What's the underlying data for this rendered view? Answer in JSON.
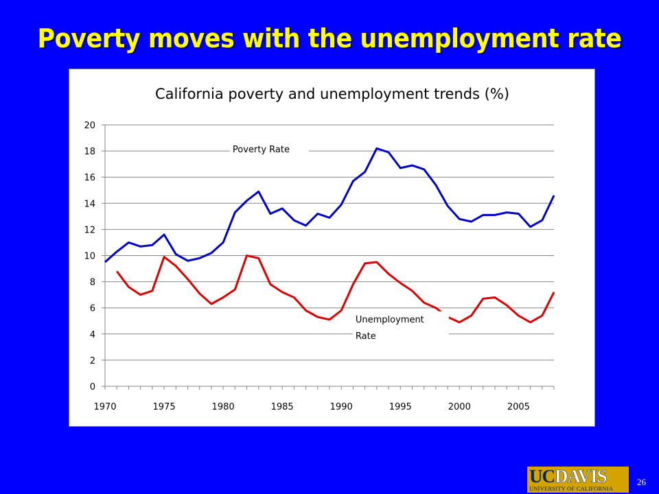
{
  "slide": {
    "title": "Poverty moves with the unemployment rate",
    "page_number": "26"
  },
  "logo": {
    "uc": "UC",
    "davis": "DAVIS",
    "subtitle": "UNIVERSITY OF CALIFORNIA"
  },
  "colors": {
    "background": "#0000ff",
    "title": "#ffff00",
    "poverty_line": "#0000cc",
    "unemployment_line": "#dd0000",
    "logo_gold": "#d4a300"
  },
  "chart_data": {
    "type": "line",
    "title": "California poverty and unemployment trends (%)",
    "xlabel": "",
    "ylabel": "",
    "xlim": [
      1970,
      2008
    ],
    "ylim": [
      0,
      20
    ],
    "x_ticks": [
      1970,
      1975,
      1980,
      1985,
      1990,
      1995,
      2000,
      2005
    ],
    "y_ticks": [
      0,
      2,
      4,
      6,
      8,
      10,
      12,
      14,
      16,
      18,
      20
    ],
    "grid": "horizontal",
    "series": [
      {
        "name": "Poverty Rate",
        "color": "#0000cc",
        "x": [
          1970,
          1971,
          1972,
          1973,
          1974,
          1975,
          1976,
          1977,
          1978,
          1979,
          1980,
          1981,
          1982,
          1983,
          1984,
          1985,
          1986,
          1987,
          1988,
          1989,
          1990,
          1991,
          1992,
          1993,
          1994,
          1995,
          1996,
          1997,
          1998,
          1999,
          2000,
          2001,
          2002,
          2003,
          2004,
          2005,
          2006,
          2007,
          2008
        ],
        "y": [
          9.5,
          10.3,
          11.0,
          10.7,
          10.8,
          11.6,
          10.1,
          9.6,
          9.8,
          10.2,
          11.0,
          13.3,
          14.2,
          14.9,
          13.2,
          13.6,
          12.7,
          12.3,
          13.2,
          12.9,
          13.9,
          15.7,
          16.4,
          18.2,
          17.9,
          16.7,
          16.9,
          16.6,
          15.4,
          13.8,
          12.8,
          12.6,
          13.1,
          13.1,
          13.3,
          13.2,
          12.2,
          12.7,
          14.6
        ]
      },
      {
        "name": "Unemployment Rate",
        "color": "#dd0000",
        "x": [
          1971,
          1972,
          1973,
          1974,
          1975,
          1976,
          1977,
          1978,
          1979,
          1980,
          1981,
          1982,
          1983,
          1984,
          1985,
          1986,
          1987,
          1988,
          1989,
          1990,
          1991,
          1992,
          1993,
          1994,
          1995,
          1996,
          1997,
          1998,
          1999,
          2000,
          2001,
          2002,
          2003,
          2004,
          2005,
          2006,
          2007,
          2008
        ],
        "y": [
          8.8,
          7.6,
          7.0,
          7.3,
          9.9,
          9.2,
          8.2,
          7.1,
          6.3,
          6.8,
          7.4,
          10.0,
          9.8,
          7.8,
          7.2,
          6.8,
          5.8,
          5.3,
          5.1,
          5.8,
          7.8,
          9.4,
          9.5,
          8.6,
          7.9,
          7.3,
          6.4,
          6.0,
          5.3,
          4.9,
          5.4,
          6.7,
          6.8,
          6.2,
          5.4,
          4.9,
          5.4,
          7.2
        ]
      }
    ],
    "annotations": [
      {
        "lines": [
          "Poverty Rate"
        ],
        "series": "Poverty Rate"
      },
      {
        "lines": [
          "Unemployment",
          "Rate"
        ],
        "series": "Unemployment Rate"
      }
    ]
  }
}
